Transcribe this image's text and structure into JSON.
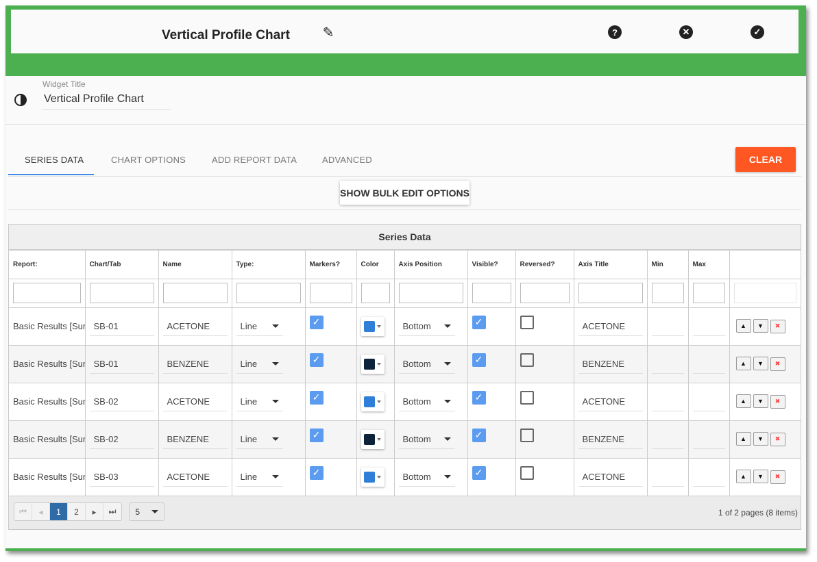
{
  "header": {
    "title": "Vertical Profile Chart",
    "icons": [
      "pencil-icon",
      "help-icon",
      "close-circle-icon",
      "check-circle-icon"
    ]
  },
  "widget_title": {
    "label": "Widget Title",
    "value": "Vertical Profile Chart",
    "icon": "contrast-drop-icon"
  },
  "tabs": [
    {
      "label": "SERIES DATA",
      "active": true
    },
    {
      "label": "CHART OPTIONS"
    },
    {
      "label": "ADD REPORT DATA"
    },
    {
      "label": "ADVANCED"
    }
  ],
  "clear_label": "CLEAR",
  "bulk_label": "SHOW BULK EDIT OPTIONS",
  "colors": {
    "accent_green": "#4caf50",
    "clear": "#ff5722",
    "tab_ink": "#3f8de8",
    "page_active": "#2f6ba7"
  },
  "grid": {
    "title": "Series Data",
    "columns": [
      "Report:",
      "Chart/Tab",
      "Name",
      "Type:",
      "Markers?",
      "Color",
      "Axis Position",
      "Visible?",
      "Reversed?",
      "Axis Title",
      "Min",
      "Max",
      ""
    ],
    "rows": [
      {
        "report": "Basic Results [Sum",
        "chart": "SB-01",
        "name": "ACETONE",
        "type": "Line",
        "markers": true,
        "color": "#2f7ed8",
        "axis": "Bottom",
        "visible": true,
        "reversed": false,
        "axis_title": "ACETONE",
        "min": "",
        "max": ""
      },
      {
        "report": "Basic Results [Sum",
        "chart": "SB-01",
        "name": "BENZENE",
        "type": "Line",
        "markers": true,
        "color": "#0d233a",
        "axis": "Bottom",
        "visible": true,
        "reversed": false,
        "axis_title": "BENZENE",
        "min": "",
        "max": ""
      },
      {
        "report": "Basic Results [Sum",
        "chart": "SB-02",
        "name": "ACETONE",
        "type": "Line",
        "markers": true,
        "color": "#2f7ed8",
        "axis": "Bottom",
        "visible": true,
        "reversed": false,
        "axis_title": "ACETONE",
        "min": "",
        "max": ""
      },
      {
        "report": "Basic Results [Sum",
        "chart": "SB-02",
        "name": "BENZENE",
        "type": "Line",
        "markers": true,
        "color": "#0d233a",
        "axis": "Bottom",
        "visible": true,
        "reversed": false,
        "axis_title": "BENZENE",
        "min": "",
        "max": ""
      },
      {
        "report": "Basic Results [Sum",
        "chart": "SB-03",
        "name": "ACETONE",
        "type": "Line",
        "markers": true,
        "color": "#2f7ed8",
        "axis": "Bottom",
        "visible": true,
        "reversed": false,
        "axis_title": "ACETONE",
        "min": "",
        "max": ""
      }
    ],
    "row_actions": {
      "up": "▲",
      "down": "▼",
      "delete": "✖"
    },
    "pager": {
      "pages": [
        "1",
        "2"
      ],
      "current": "1",
      "page_size": "5",
      "info": "1 of 2 pages (8 items)"
    }
  }
}
